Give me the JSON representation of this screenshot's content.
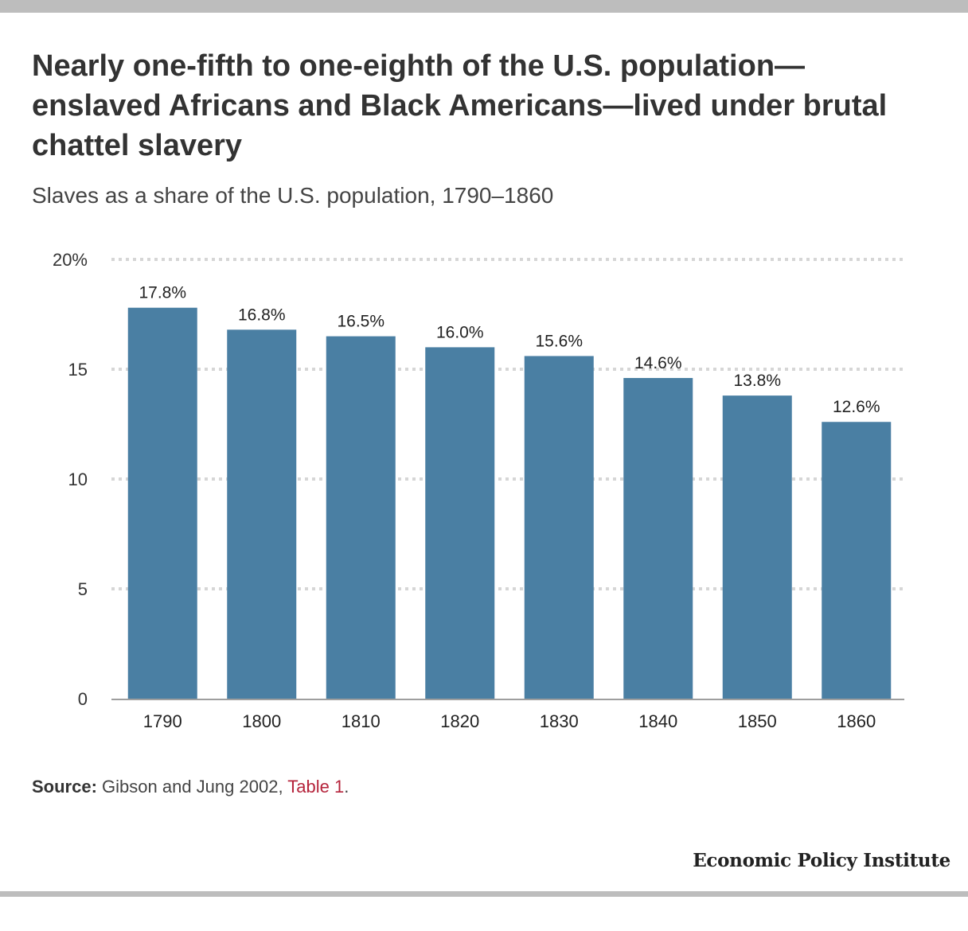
{
  "header": {
    "title": "Nearly one-fifth to one-eighth of the U.S. population—enslaved Africans and Black Americans—lived under brutal chattel slavery",
    "subtitle": "Slaves as a share of the U.S. population, 1790–1860"
  },
  "chart_data": {
    "type": "bar",
    "title": "Nearly one-fifth to one-eighth of the U.S. population—enslaved Africans and Black Americans—lived under brutal chattel slavery",
    "subtitle": "Slaves as a share of the U.S. population, 1790–1860",
    "categories": [
      "1790",
      "1800",
      "1810",
      "1820",
      "1830",
      "1840",
      "1850",
      "1860"
    ],
    "values": [
      17.8,
      16.8,
      16.5,
      16.0,
      15.6,
      14.6,
      13.8,
      12.6
    ],
    "value_labels": [
      "17.8%",
      "16.8%",
      "16.5%",
      "16.0%",
      "15.6%",
      "14.6%",
      "13.8%",
      "12.6%"
    ],
    "ylim": [
      0,
      20
    ],
    "yticks": [
      0,
      5,
      10,
      15,
      20
    ],
    "ytick_labels": [
      "0",
      "5",
      "10",
      "15",
      "20%"
    ],
    "xlabel": "",
    "ylabel": "",
    "grid": true,
    "bar_color": "#4a7fa3"
  },
  "footer": {
    "source_label": "Source:",
    "source_text": "Gibson and Jung 2002, ",
    "source_link": "Table 1",
    "source_end": ".",
    "logo": "Economic Policy Institute"
  },
  "colors": {
    "bar": "#4a7fa3",
    "link": "#b5233b",
    "rule": "#bdbdbd"
  }
}
